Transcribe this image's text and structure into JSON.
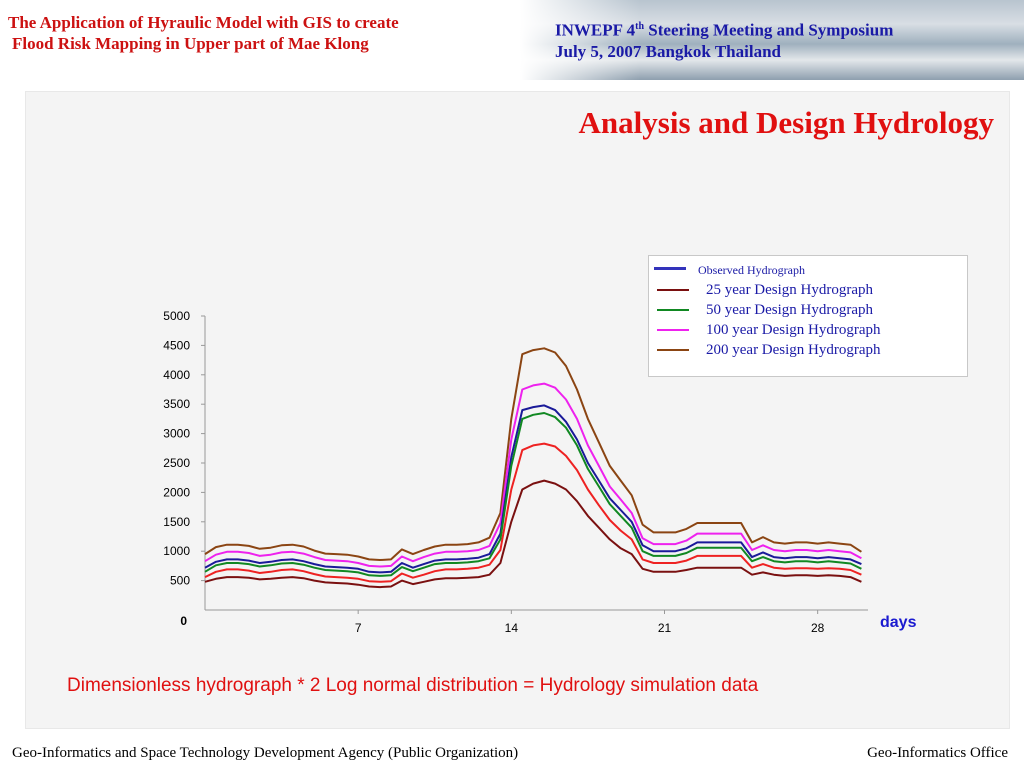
{
  "header": {
    "title_line1": "The Application of Hyraulic Model with GIS to create",
    "title_line2": "Flood Risk Mapping  in Upper part of Mae Klong",
    "conference_prefix": "INWEPF  4",
    "conference_sup": "th",
    "conference_suffix": "  Steering Meeting and Symposium",
    "conference_date": "July  5, 2007  Bangkok  Thailand"
  },
  "slide_title": "Analysis and Design Hydrology",
  "caption": "Dimensionless hydrograph  * 2 Log normal distribution  = Hydrology simulation data",
  "footer": {
    "left": "Geo-Informatics and Space Technology Development Agency (Public Organization)",
    "right": "Geo-Informatics Office"
  },
  "chart_data": {
    "type": "line",
    "x_unit_label": "days",
    "ylim": [
      0,
      5000
    ],
    "yticks": [
      500,
      1000,
      1500,
      2000,
      2500,
      3000,
      3500,
      4000,
      4500,
      5000
    ],
    "ytick_labels": [
      "500",
      "1000",
      "1500",
      "2000",
      "2500",
      "3000",
      "3500",
      "4000",
      "4500",
      "5000"
    ],
    "zero_label": "0",
    "xlim": [
      0,
      30.3
    ],
    "xticks": [
      7,
      14,
      21,
      28
    ],
    "xtick_labels": [
      "7",
      "14",
      "21",
      "28"
    ],
    "x": [
      0,
      0.5,
      1,
      1.5,
      2,
      2.5,
      3,
      3.5,
      4,
      4.5,
      5,
      5.5,
      6,
      6.5,
      7,
      7.5,
      8,
      8.5,
      9,
      9.5,
      10,
      10.5,
      11,
      11.5,
      12,
      12.5,
      13,
      13.5,
      14,
      14.5,
      15,
      15.5,
      16,
      16.5,
      17,
      17.5,
      18,
      18.5,
      19,
      19.5,
      20,
      20.5,
      21,
      21.5,
      22,
      22.5,
      23,
      23.5,
      24,
      24.5,
      25,
      25.5,
      26,
      26.5,
      27,
      27.5,
      28,
      28.5,
      29,
      29.5,
      30
    ],
    "series": [
      {
        "name": "Observed Hydrograph",
        "color": "#1a1a99",
        "values": [
          720,
          820,
          860,
          860,
          840,
          800,
          820,
          850,
          860,
          830,
          780,
          740,
          730,
          720,
          700,
          650,
          640,
          650,
          800,
          720,
          780,
          840,
          860,
          860,
          870,
          890,
          950,
          1300,
          2600,
          3400,
          3450,
          3480,
          3400,
          3200,
          2900,
          2500,
          2200,
          1900,
          1700,
          1500,
          1100,
          1000,
          1000,
          1000,
          1050,
          1150,
          1150,
          1150,
          1150,
          1150,
          900,
          980,
          900,
          880,
          900,
          900,
          880,
          900,
          880,
          860,
          780
        ]
      },
      {
        "name": "25 year Design Hydrograph",
        "color": "#7a1010",
        "values": [
          480,
          530,
          560,
          560,
          550,
          520,
          530,
          550,
          560,
          540,
          500,
          470,
          460,
          450,
          430,
          400,
          390,
          400,
          500,
          440,
          480,
          520,
          540,
          540,
          550,
          560,
          600,
          800,
          1500,
          2050,
          2150,
          2200,
          2150,
          2050,
          1850,
          1600,
          1400,
          1200,
          1050,
          950,
          700,
          650,
          650,
          650,
          680,
          720,
          720,
          720,
          720,
          720,
          600,
          640,
          600,
          580,
          590,
          590,
          580,
          590,
          580,
          560,
          480
        ]
      },
      {
        "name": "50 year Design Hydrograph",
        "color": "#118822",
        "values": [
          650,
          760,
          800,
          800,
          780,
          740,
          760,
          790,
          800,
          770,
          720,
          680,
          670,
          660,
          640,
          590,
          580,
          590,
          730,
          660,
          720,
          780,
          800,
          800,
          810,
          830,
          880,
          1200,
          2450,
          3250,
          3320,
          3350,
          3280,
          3100,
          2800,
          2400,
          2100,
          1800,
          1600,
          1400,
          1000,
          920,
          920,
          920,
          970,
          1060,
          1060,
          1060,
          1060,
          1060,
          830,
          900,
          830,
          810,
          830,
          830,
          810,
          830,
          810,
          790,
          700
        ]
      },
      {
        "name": "100 year Design Hydrograph",
        "color": "#ee22ee",
        "values": [
          830,
          940,
          990,
          990,
          970,
          920,
          940,
          980,
          990,
          960,
          900,
          850,
          840,
          830,
          800,
          750,
          740,
          750,
          910,
          830,
          900,
          960,
          990,
          990,
          1000,
          1020,
          1090,
          1480,
          2900,
          3750,
          3820,
          3850,
          3780,
          3580,
          3250,
          2800,
          2450,
          2100,
          1880,
          1650,
          1220,
          1120,
          1120,
          1120,
          1180,
          1300,
          1300,
          1300,
          1300,
          1300,
          1020,
          1100,
          1020,
          1000,
          1020,
          1020,
          1000,
          1020,
          1000,
          980,
          880
        ]
      },
      {
        "name": "200 year Design Hydrograph",
        "color": "#8b4513",
        "values": [
          950,
          1070,
          1110,
          1110,
          1090,
          1040,
          1060,
          1100,
          1110,
          1080,
          1010,
          960,
          950,
          940,
          910,
          860,
          850,
          860,
          1030,
          950,
          1020,
          1080,
          1110,
          1110,
          1120,
          1150,
          1230,
          1650,
          3250,
          4350,
          4420,
          4450,
          4380,
          4150,
          3750,
          3250,
          2850,
          2450,
          2200,
          1950,
          1450,
          1320,
          1320,
          1320,
          1380,
          1480,
          1480,
          1480,
          1480,
          1480,
          1150,
          1240,
          1150,
          1130,
          1150,
          1150,
          1130,
          1150,
          1130,
          1110,
          990
        ]
      },
      {
        "name": "",
        "color": "#ee2222",
        "values": [
          560,
          650,
          690,
          690,
          670,
          630,
          650,
          680,
          690,
          660,
          610,
          570,
          560,
          550,
          530,
          490,
          480,
          490,
          620,
          550,
          600,
          660,
          690,
          690,
          700,
          720,
          770,
          1020,
          2050,
          2720,
          2800,
          2830,
          2780,
          2620,
          2380,
          2050,
          1780,
          1530,
          1350,
          1200,
          860,
          800,
          800,
          800,
          840,
          920,
          920,
          920,
          920,
          920,
          720,
          780,
          720,
          700,
          710,
          710,
          700,
          710,
          700,
          680,
          600
        ]
      }
    ]
  }
}
